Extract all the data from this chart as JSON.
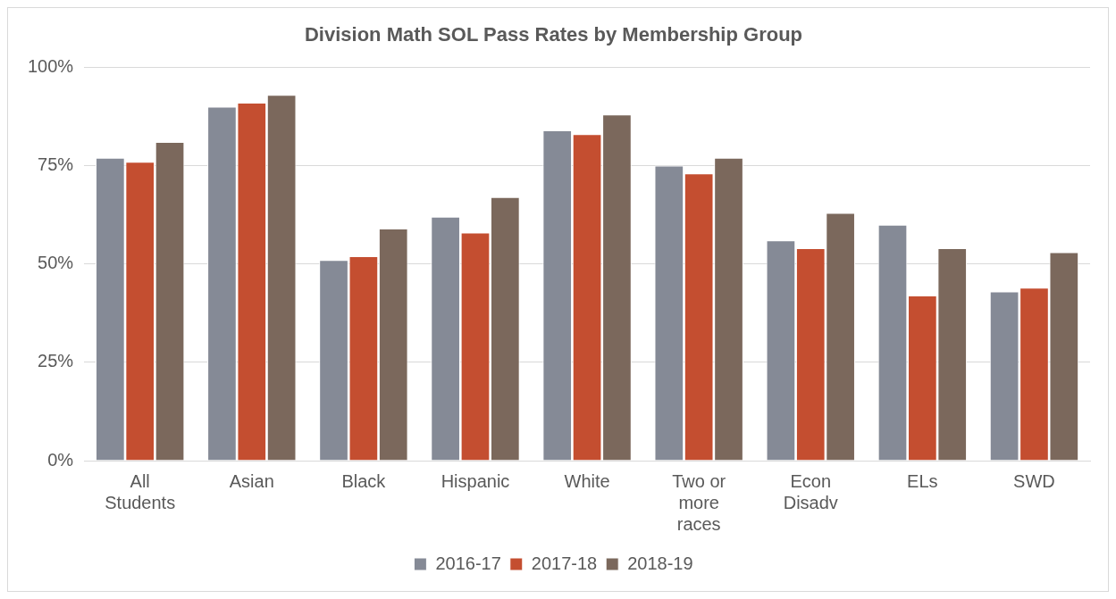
{
  "chart_data": {
    "type": "bar",
    "title": "Division Math SOL Pass Rates by Membership Group",
    "categories": [
      "All Students",
      "Asian",
      "Black",
      "Hispanic",
      "White",
      "Two or more races",
      "Econ Disadv",
      "ELs",
      "SWD"
    ],
    "series": [
      {
        "name": "2016-17",
        "color": "#858a96",
        "values": [
          77,
          90,
          51,
          62,
          84,
          75,
          56,
          60,
          43
        ]
      },
      {
        "name": "2017-18",
        "color": "#c44e30",
        "values": [
          76,
          91,
          52,
          58,
          83,
          73,
          54,
          42,
          44
        ]
      },
      {
        "name": "2018-19",
        "color": "#7b685c",
        "values": [
          81,
          93,
          59,
          67,
          88,
          77,
          63,
          54,
          53
        ]
      }
    ],
    "ylim": [
      0,
      100
    ],
    "yticks": [
      {
        "value": 0,
        "label": "0%"
      },
      {
        "value": 25,
        "label": "25%"
      },
      {
        "value": 50,
        "label": "50%"
      },
      {
        "value": 75,
        "label": "75%"
      },
      {
        "value": 100,
        "label": "100%"
      }
    ],
    "grid": "y",
    "legend": "bottom"
  }
}
